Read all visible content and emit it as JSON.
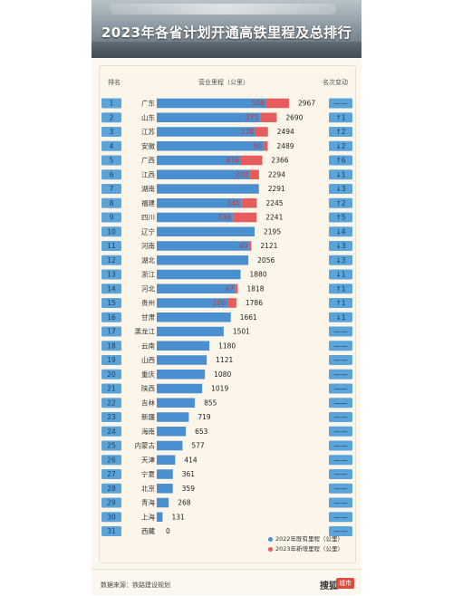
{
  "title": "2023年各省计划开通高铁里程及总排行",
  "headers": {
    "rank": "排名",
    "mileage": "营业里程（公里）",
    "change": "名次变动"
  },
  "legend": {
    "existing": "2022年既有里程（公里）",
    "new": "2023年新增里程（公里）"
  },
  "colors": {
    "existing": "#4a8fcf",
    "new": "#e65c5c",
    "rank_box": "#5ba4d9"
  },
  "source": "数据来源：铁路建设规划",
  "brand": {
    "name": "搜狐",
    "tag": "城市"
  },
  "chart_data": {
    "type": "bar",
    "orientation": "horizontal",
    "stacked": true,
    "title": "2023年各省计划开通高铁里程及总排行",
    "categories": [
      "广东",
      "山东",
      "江苏",
      "安徽",
      "广西",
      "江西",
      "湖南",
      "福建",
      "四川",
      "辽宁",
      "河南",
      "湖北",
      "浙江",
      "河北",
      "贵州",
      "甘肃",
      "黑龙江",
      "云南",
      "山西",
      "重庆",
      "陕西",
      "吉林",
      "新疆",
      "海南",
      "内蒙古",
      "天津",
      "宁夏",
      "北京",
      "青海",
      "上海",
      "西藏"
    ],
    "ranks": [
      1,
      2,
      3,
      4,
      5,
      6,
      7,
      8,
      9,
      10,
      11,
      12,
      13,
      14,
      15,
      16,
      17,
      18,
      19,
      20,
      21,
      22,
      23,
      24,
      25,
      26,
      27,
      28,
      29,
      30,
      31
    ],
    "totals": [
      2967,
      2690,
      2494,
      2489,
      2366,
      2294,
      2291,
      2245,
      2241,
      2195,
      2121,
      2056,
      1880,
      1818,
      1786,
      1661,
      1501,
      1180,
      1121,
      1080,
      1019,
      855,
      719,
      653,
      577,
      414,
      361,
      359,
      268,
      131,
      0
    ],
    "new_2023": [
      509,
      371,
      278,
      90,
      476,
      200,
      0,
      341,
      536,
      0,
      40,
      0,
      0,
      47,
      200,
      0,
      0,
      0,
      0,
      0,
      0,
      0,
      0,
      0,
      0,
      0,
      0,
      0,
      0,
      0,
      0
    ],
    "rank_change": [
      "——",
      "↑1",
      "↑2",
      "↓2",
      "↑6",
      "↓1",
      "↓3",
      "↑2",
      "↑5",
      "↓4",
      "↓3",
      "↓3",
      "↓1",
      "↑1",
      "↑1",
      "↓1",
      "——",
      "——",
      "——",
      "——",
      "——",
      "——",
      "——",
      "——",
      "——",
      "——",
      "——",
      "——",
      "——",
      "——",
      "——"
    ],
    "series": [
      {
        "name": "2022年既有里程（公里）"
      },
      {
        "name": "2023年新增里程（公里）"
      }
    ],
    "xlim": [
      0,
      2967
    ]
  }
}
